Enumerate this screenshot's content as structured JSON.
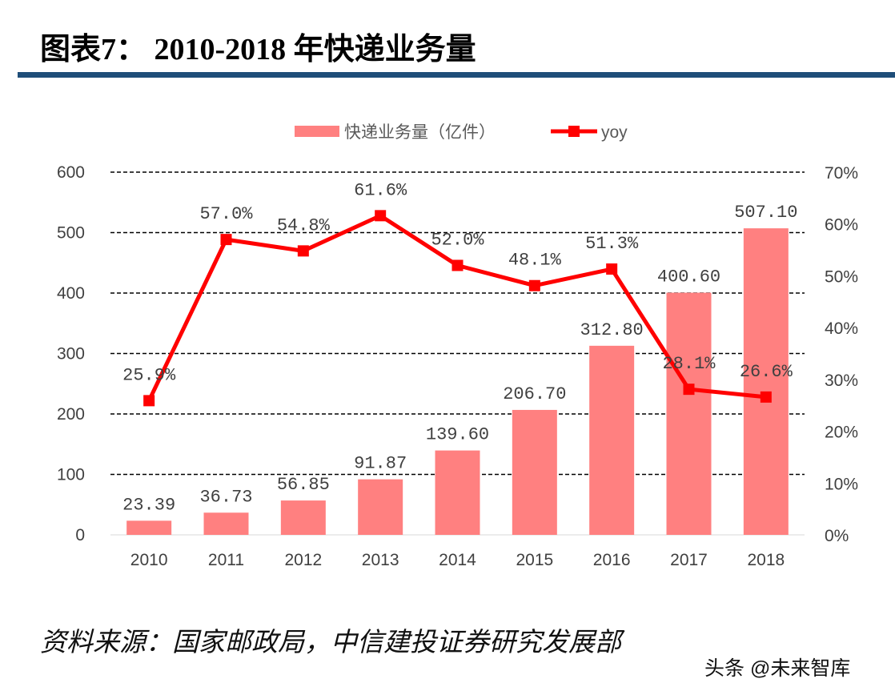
{
  "title": "图表7：  2010-2018 年快递业务量",
  "source": "资料来源：国家邮政局，中信建投证券研究发展部",
  "watermark": "头条 @未来智库",
  "colors": {
    "bar": "#ff8080",
    "line": "#ff0000",
    "rule": "#1f4e79"
  },
  "chart_data": {
    "type": "bar+line",
    "categories": [
      "2010",
      "2011",
      "2012",
      "2013",
      "2014",
      "2015",
      "2016",
      "2017",
      "2018"
    ],
    "series": [
      {
        "name": "快递业务量（亿件）",
        "type": "bar",
        "axis": "left",
        "values": [
          23.39,
          36.73,
          56.85,
          91.87,
          139.6,
          206.7,
          312.8,
          400.6,
          507.1
        ],
        "labels": [
          "23.39",
          "36.73",
          "56.85",
          "91.87",
          "139.60",
          "206.70",
          "312.80",
          "400.60",
          "507.10"
        ]
      },
      {
        "name": "yoy",
        "type": "line",
        "axis": "right",
        "values": [
          25.9,
          57.0,
          54.8,
          61.6,
          52.0,
          48.1,
          51.3,
          28.1,
          26.6
        ],
        "labels": [
          "25.9%",
          "57.0%",
          "54.8%",
          "61.6%",
          "52.0%",
          "48.1%",
          "51.3%",
          "28.1%",
          "26.6%"
        ]
      }
    ],
    "left_axis": {
      "range": [
        0,
        600
      ],
      "ticks": [
        "0",
        "100",
        "200",
        "300",
        "400",
        "500",
        "600"
      ]
    },
    "right_axis": {
      "range": [
        0,
        70
      ],
      "ticks": [
        "0%",
        "10%",
        "20%",
        "30%",
        "40%",
        "50%",
        "60%",
        "70%"
      ]
    },
    "grid": "dashed horizontal",
    "legend": "top"
  }
}
